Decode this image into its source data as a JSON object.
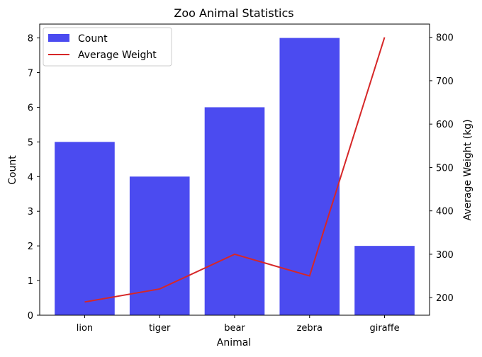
{
  "chart_data": {
    "type": "bar",
    "title": "Zoo Animal Statistics",
    "xlabel": "Animal",
    "ylabel": "Count",
    "y2label": "Average Weight (kg)",
    "categories": [
      "lion",
      "tiger",
      "bear",
      "zebra",
      "giraffe"
    ],
    "series": [
      {
        "name": "Count",
        "type": "bar",
        "axis": "left",
        "color": "#4b4bf0",
        "values": [
          5,
          4,
          6,
          8,
          2
        ]
      },
      {
        "name": "Average Weight",
        "type": "line",
        "axis": "right",
        "color": "#d62728",
        "values": [
          190,
          220,
          300,
          250,
          800
        ]
      }
    ],
    "ylim": [
      0,
      8.4
    ],
    "yticks": [
      0,
      1,
      2,
      3,
      4,
      5,
      6,
      7,
      8
    ],
    "y2lim": [
      159.5,
      830.5
    ],
    "y2ticks": [
      200,
      300,
      400,
      500,
      600,
      700,
      800
    ],
    "grid": false,
    "legend_position": "top-left"
  }
}
